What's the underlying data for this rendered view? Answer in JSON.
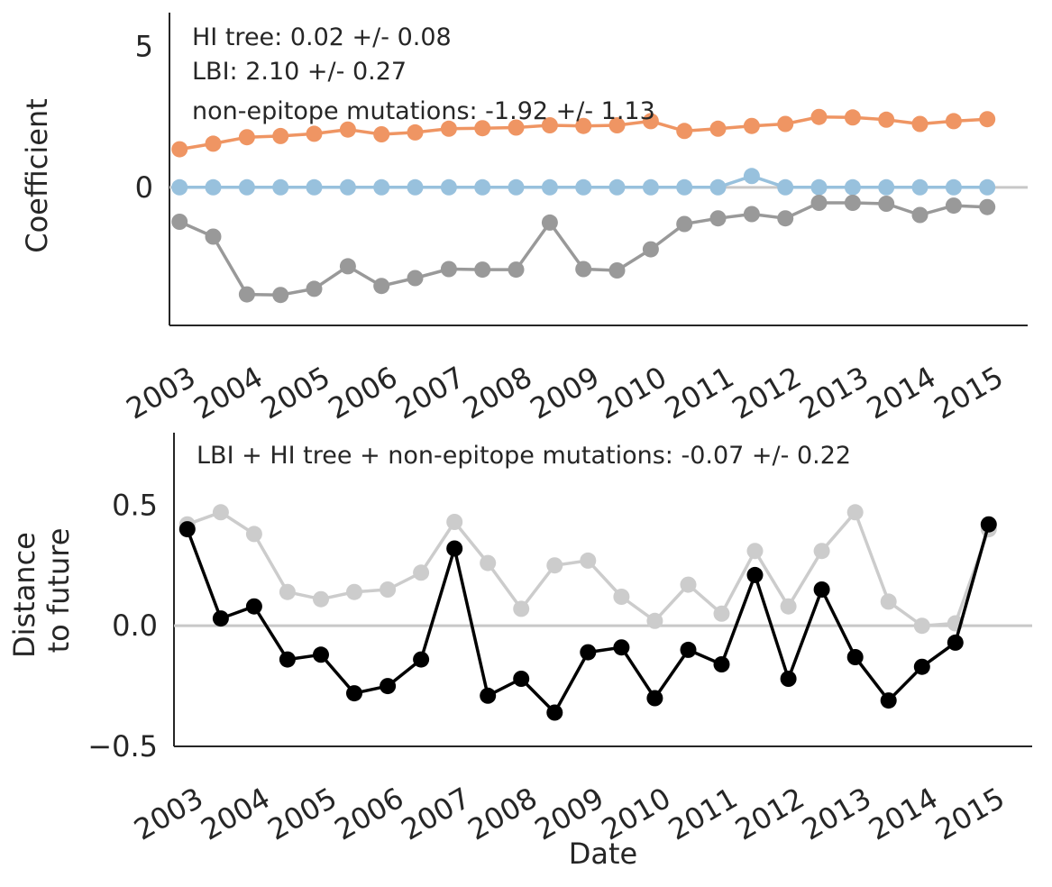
{
  "chart_data": [
    {
      "type": "line",
      "ylabel": "Coefficient",
      "xlabel": "",
      "xlim": [
        2002.85,
        2015.6
      ],
      "ylim": [
        -4.9,
        6.2
      ],
      "yticks": [
        0,
        5
      ],
      "xticks": [
        2003,
        2004,
        2005,
        2006,
        2007,
        2008,
        2009,
        2010,
        2011,
        2012,
        2013,
        2014,
        2015
      ],
      "zero_line": 0,
      "grid": false,
      "legend": "none",
      "annotations": [
        "HI tree: 0.02 +/- 0.08",
        "LBI: 2.10 +/- 0.27",
        "non-epitope mutations: -1.92 +/- 1.13"
      ],
      "x": [
        2003.0,
        2003.5,
        2004.0,
        2004.5,
        2005.0,
        2005.5,
        2006.0,
        2006.5,
        2007.0,
        2007.5,
        2008.0,
        2008.5,
        2009.0,
        2009.5,
        2010.0,
        2010.5,
        2011.0,
        2011.5,
        2012.0,
        2012.5,
        2013.0,
        2013.5,
        2014.0,
        2014.5,
        2015.0
      ],
      "series": [
        {
          "color": "#ef9563",
          "values": [
            1.35,
            1.55,
            1.78,
            1.82,
            1.9,
            2.05,
            1.88,
            1.95,
            2.08,
            2.1,
            2.12,
            2.2,
            2.18,
            2.2,
            2.35,
            2.0,
            2.08,
            2.18,
            2.25,
            2.5,
            2.48,
            2.4,
            2.25,
            2.35,
            2.42
          ]
        },
        {
          "color": "#98c1dd",
          "values": [
            0,
            0,
            0,
            0,
            0,
            0,
            0,
            0,
            0,
            0,
            0,
            0,
            0,
            0,
            0,
            0,
            0,
            0.4,
            0,
            0,
            0,
            0,
            0,
            0,
            0
          ]
        },
        {
          "color": "#999999",
          "values": [
            -1.22,
            -1.75,
            -3.8,
            -3.82,
            -3.6,
            -2.8,
            -3.5,
            -3.22,
            -2.9,
            -2.92,
            -2.92,
            -1.25,
            -2.9,
            -2.95,
            -2.2,
            -1.3,
            -1.1,
            -0.95,
            -1.1,
            -0.55,
            -0.55,
            -0.58,
            -0.98,
            -0.65,
            -0.7
          ]
        }
      ]
    },
    {
      "type": "line",
      "ylabel": "Distance\nto future",
      "xlabel": "Date",
      "xlim": [
        2002.8,
        2015.65
      ],
      "ylim": [
        -0.5,
        0.8
      ],
      "yticks": [
        -0.5,
        0.0,
        0.5
      ],
      "ytick_labels": [
        "−0.5",
        "0.0",
        "0.5"
      ],
      "xticks": [
        2003,
        2004,
        2005,
        2006,
        2007,
        2008,
        2009,
        2010,
        2011,
        2012,
        2013,
        2014,
        2015
      ],
      "zero_line": 0,
      "grid": false,
      "legend": "none",
      "annotations": [
        "LBI + HI tree + non-epitope mutations: -0.07 +/- 0.22"
      ],
      "x": [
        2003.0,
        2003.5,
        2004.0,
        2004.5,
        2005.0,
        2005.5,
        2006.0,
        2006.5,
        2007.0,
        2007.5,
        2008.0,
        2008.5,
        2009.0,
        2009.5,
        2010.0,
        2010.5,
        2011.0,
        2011.5,
        2012.0,
        2012.5,
        2013.0,
        2013.5,
        2014.0,
        2014.5,
        2015.0
      ],
      "series": [
        {
          "color": "#cccccc",
          "values": [
            0.42,
            0.47,
            0.38,
            0.14,
            0.11,
            0.14,
            0.15,
            0.22,
            0.43,
            0.26,
            0.07,
            0.25,
            0.27,
            0.12,
            0.02,
            0.17,
            0.05,
            0.31,
            0.08,
            0.31,
            0.47,
            0.1,
            0.0,
            0.01,
            0.4
          ]
        },
        {
          "color": "#000000",
          "values": [
            0.4,
            0.03,
            0.08,
            -0.14,
            -0.12,
            -0.28,
            -0.25,
            -0.14,
            0.32,
            -0.29,
            -0.22,
            -0.36,
            -0.11,
            -0.09,
            -0.3,
            -0.1,
            -0.16,
            0.21,
            -0.22,
            0.15,
            -0.13,
            -0.31,
            -0.17,
            -0.07,
            0.42
          ]
        }
      ]
    }
  ]
}
